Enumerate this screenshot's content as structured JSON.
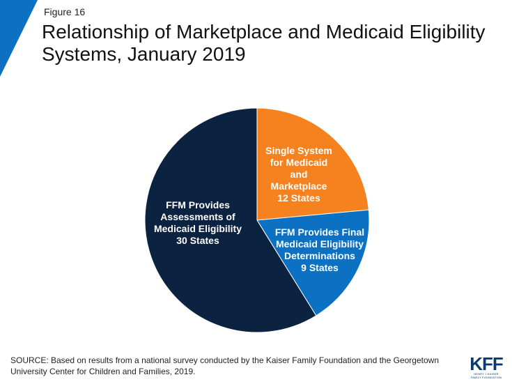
{
  "figure_label": "Figure 16",
  "title": "Relationship of Marketplace and Medicaid Eligibility Systems, January 2019",
  "chart_data": {
    "type": "pie",
    "title": "Relationship of Marketplace and Medicaid Eligibility Systems, January 2019",
    "slices": [
      {
        "name": "Single System for Medicaid and Marketplace",
        "value": 12,
        "label": "Single System\nfor Medicaid\nand\nMarketplace\n12 States",
        "color": "#f5821f"
      },
      {
        "name": "FFM Provides Final Medicaid Eligibility Determinations",
        "value": 9,
        "label": "FFM Provides Final\nMedicaid Eligibility\nDeterminations\n9 States",
        "color": "#0c71c3"
      },
      {
        "name": "FFM Provides Assessments of Medicaid Eligibility",
        "value": 30,
        "label": "FFM Provides\nAssessments of\nMedicaid Eligibility\n30 States",
        "color": "#0b2341"
      }
    ]
  },
  "source_note": "SOURCE: Based on results from a national survey conducted by the Kaiser Family Foundation and the Georgetown University Center for Children and Families, 2019.",
  "logo": {
    "word": "KFF",
    "subtitle": "HENRY J KAISER\nFAMILY FOUNDATION"
  },
  "colors": {
    "accent": "#0c71c3",
    "text": "#111111"
  }
}
